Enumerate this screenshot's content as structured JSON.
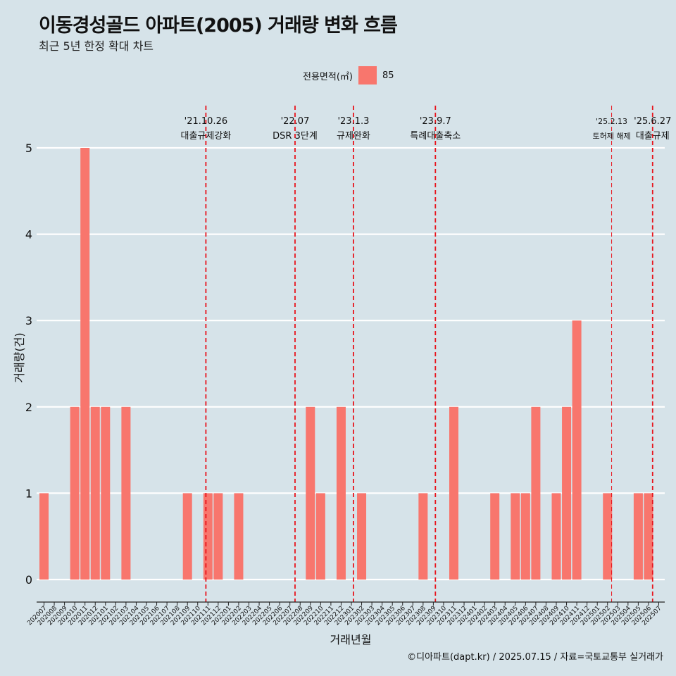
{
  "title": "이동경성골드 아파트(2005) 거래량 변화 흐름",
  "subtitle": "최근 5년 한정 확대 차트",
  "legend": {
    "title": "전용면적(㎡)",
    "label": "85",
    "color": "#f8766d"
  },
  "caption": "©디아파트(dapt.kr) / 2025.07.15 / 자료=국토교통부 실거래가",
  "chart_data": {
    "type": "bar",
    "xlabel": "거래년월",
    "ylabel": "거래량(건)",
    "ylim": [
      0,
      5
    ],
    "yticks": [
      0,
      1,
      2,
      3,
      4,
      5
    ],
    "grid": true,
    "legend_position": "top",
    "categories": [
      "202007",
      "202008",
      "202009",
      "202010",
      "202011",
      "202012",
      "202101",
      "202102",
      "202103",
      "202104",
      "202105",
      "202106",
      "202107",
      "202108",
      "202109",
      "202110",
      "202111",
      "202112",
      "202201",
      "202202",
      "202203",
      "202204",
      "202205",
      "202206",
      "202207",
      "202208",
      "202209",
      "202210",
      "202211",
      "202212",
      "202301",
      "202302",
      "202303",
      "202304",
      "202305",
      "202306",
      "202307",
      "202308",
      "202309",
      "202310",
      "202311",
      "202312",
      "202401",
      "202402",
      "202403",
      "202404",
      "202405",
      "202406",
      "202407",
      "202408",
      "202409",
      "202410",
      "202411",
      "202412",
      "202501",
      "202502",
      "202503",
      "202504",
      "202505",
      "202506",
      "202507"
    ],
    "bars": [
      {
        "x": "202007",
        "value": 1
      },
      {
        "x": "202010",
        "value": 2
      },
      {
        "x": "202011",
        "value": 5
      },
      {
        "x": "202012",
        "value": 2
      },
      {
        "x": "202101",
        "value": 2
      },
      {
        "x": "202103",
        "value": 2
      },
      {
        "x": "202109",
        "value": 1
      },
      {
        "x": "202111",
        "value": 1
      },
      {
        "x": "202112",
        "value": 1
      },
      {
        "x": "202202",
        "value": 1
      },
      {
        "x": "202209",
        "value": 2
      },
      {
        "x": "202210",
        "value": 1
      },
      {
        "x": "202212",
        "value": 2
      },
      {
        "x": "202302",
        "value": 1
      },
      {
        "x": "202308",
        "value": 1
      },
      {
        "x": "202311",
        "value": 2
      },
      {
        "x": "202403",
        "value": 1
      },
      {
        "x": "202405",
        "value": 1
      },
      {
        "x": "202406",
        "value": 1
      },
      {
        "x": "202407",
        "value": 2
      },
      {
        "x": "202409",
        "value": 1
      },
      {
        "x": "202410",
        "value": 2
      },
      {
        "x": "202411",
        "value": 3
      },
      {
        "x": "202502",
        "value": 1
      },
      {
        "x": "202505",
        "value": 1
      },
      {
        "x": "202506",
        "value": 1
      }
    ],
    "series_name": "85",
    "annotations": [
      {
        "date": "'21.10.26",
        "label": "대출규제강화",
        "at": 15.8,
        "style": "bold"
      },
      {
        "date": "'22.07",
        "label": "DSR 3단계",
        "at": 24.5,
        "style": "bold"
      },
      {
        "date": "'23.1.3",
        "label": "규제완화",
        "at": 30.2,
        "style": "bold"
      },
      {
        "date": "'23.9.7",
        "label": "특례대출축소",
        "at": 38.2,
        "style": "bold"
      },
      {
        "date": "'25.2.13",
        "label": "토허제 해제",
        "at": 55.4,
        "style": "thin"
      },
      {
        "date": "'25.6.27",
        "label": "대출규제",
        "at": 59.4,
        "style": "bold"
      }
    ],
    "bar_color": "#f8766d",
    "vline_color": "#e8141c"
  }
}
